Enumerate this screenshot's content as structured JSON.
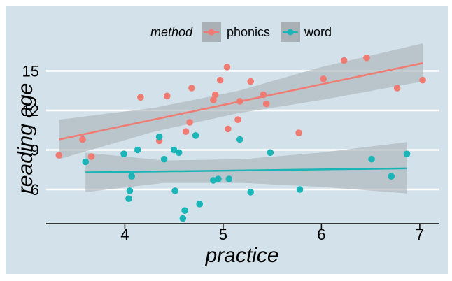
{
  "chart_data": {
    "type": "scatter",
    "xlabel": "practice",
    "ylabel": "reading age",
    "xlim": [
      3.2,
      7.2
    ],
    "ylim": [
      3.4,
      18.8
    ],
    "xticks": [
      4,
      5,
      6,
      7
    ],
    "yticks": [
      6,
      9,
      12,
      15
    ],
    "grid": "horizontal",
    "legend": {
      "title": "method",
      "position": "top"
    },
    "colors": {
      "panel": "#d3e2ea",
      "grid": "#ffffff",
      "band": "#a9b1b6",
      "axis": "#000000"
    },
    "series": [
      {
        "name": "phonics",
        "color": "#f07b72",
        "points": [
          [
            3.33,
            8.6
          ],
          [
            3.57,
            9.8
          ],
          [
            3.66,
            8.5
          ],
          [
            4.16,
            13.0
          ],
          [
            4.35,
            9.7
          ],
          [
            4.43,
            13.1
          ],
          [
            4.62,
            10.4
          ],
          [
            4.66,
            11.1
          ],
          [
            4.68,
            13.7
          ],
          [
            4.9,
            12.8
          ],
          [
            4.92,
            13.2
          ],
          [
            4.97,
            14.3
          ],
          [
            5.04,
            15.3
          ],
          [
            5.05,
            10.6
          ],
          [
            5.15,
            11.3
          ],
          [
            5.17,
            12.7
          ],
          [
            5.28,
            14.2
          ],
          [
            5.41,
            13.2
          ],
          [
            5.44,
            12.5
          ],
          [
            5.77,
            10.3
          ],
          [
            6.02,
            14.4
          ],
          [
            6.23,
            15.8
          ],
          [
            6.46,
            16.0
          ],
          [
            6.77,
            13.7
          ],
          [
            7.03,
            14.3
          ]
        ],
        "trend": {
          "x0": 3.33,
          "y0": 9.8,
          "x1": 7.03,
          "y1": 15.6
        },
        "band": {
          "x": [
            3.33,
            4.3,
            5.16,
            6.0,
            7.03
          ],
          "upper": [
            11.3,
            12.2,
            13.5,
            15.3,
            17.1
          ],
          "lower": [
            8.3,
            10.4,
            11.8,
            12.8,
            14.2
          ]
        }
      },
      {
        "name": "word",
        "color": "#1bb5b8",
        "points": [
          [
            3.6,
            8.1
          ],
          [
            3.99,
            8.7
          ],
          [
            4.04,
            5.3
          ],
          [
            4.05,
            5.9
          ],
          [
            4.07,
            7.0
          ],
          [
            4.13,
            9.0
          ],
          [
            4.35,
            10.0
          ],
          [
            4.4,
            8.3
          ],
          [
            4.5,
            9.0
          ],
          [
            4.51,
            5.9
          ],
          [
            4.55,
            8.8
          ],
          [
            4.59,
            3.8
          ],
          [
            4.61,
            4.4
          ],
          [
            4.72,
            10.1
          ],
          [
            4.76,
            4.9
          ],
          [
            4.9,
            6.7
          ],
          [
            4.95,
            6.8
          ],
          [
            5.06,
            6.8
          ],
          [
            5.17,
            9.8
          ],
          [
            5.28,
            5.8
          ],
          [
            5.48,
            8.8
          ],
          [
            5.78,
            6.0
          ],
          [
            6.51,
            8.3
          ],
          [
            6.71,
            7.0
          ],
          [
            6.87,
            8.7
          ]
        ],
        "trend": {
          "x0": 3.6,
          "y0": 7.3,
          "x1": 6.87,
          "y1": 7.6
        },
        "band": {
          "x": [
            3.6,
            4.4,
            5.2,
            6.0,
            6.87
          ],
          "upper": [
            8.8,
            8.2,
            8.3,
            8.8,
            9.6
          ],
          "lower": [
            5.8,
            6.5,
            6.5,
            6.2,
            5.7
          ]
        }
      }
    ]
  }
}
